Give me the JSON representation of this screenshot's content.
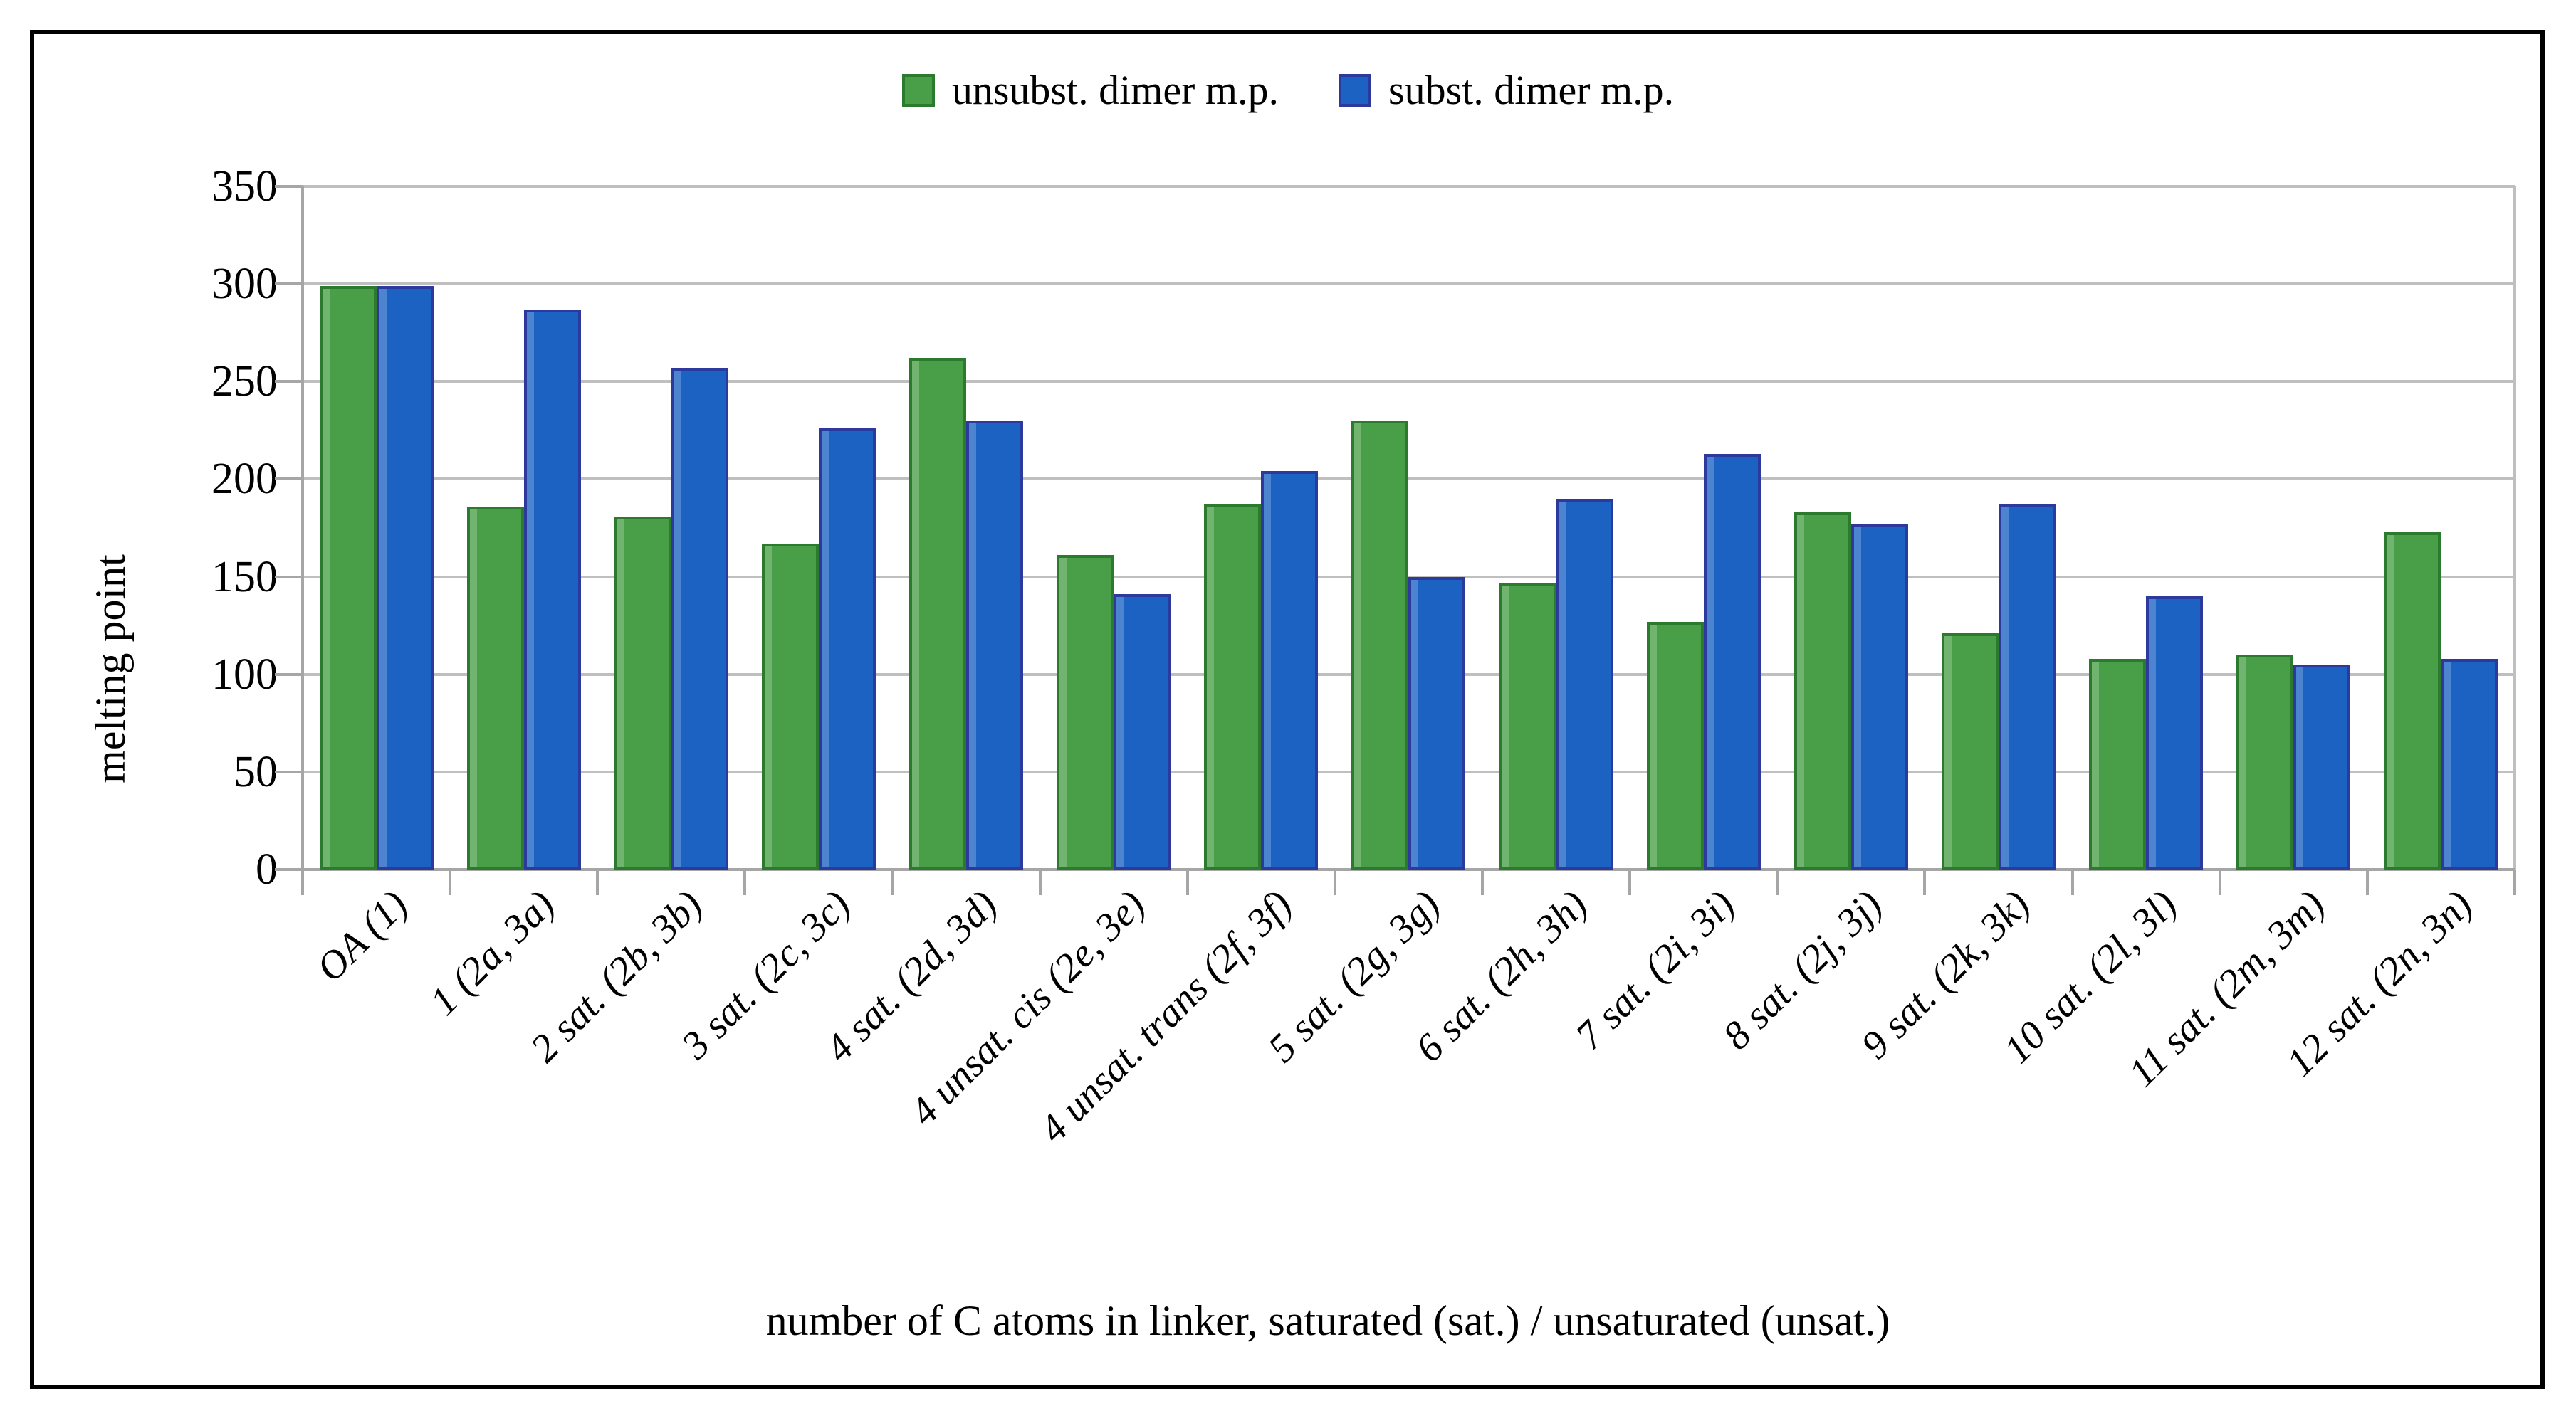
{
  "figure": {
    "background": "#ffffff",
    "frame_border_color": "#000000"
  },
  "chart_data": {
    "type": "bar",
    "title": "",
    "categories": [
      "OA (1)",
      "1 (2a, 3a)",
      "2 sat. (2b, 3b)",
      "3 sat. (2c, 3c)",
      "4 sat. (2d, 3d)",
      "4 unsat. cis (2e, 3e)",
      "4 unsat. trans (2f, 3f)",
      "5 sat. (2g, 3g)",
      "6 sat. (2h, 3h)",
      "7 sat. (2i, 3i)",
      "8 sat. (2j, 3j)",
      "9 sat. (2k, 3k)",
      "10 sat. (2l, 3l)",
      "11 sat. (2m, 3m)",
      "12 sat. (2n, 3n)"
    ],
    "series": [
      {
        "name": "unsubst. dimer m.p.",
        "color": "#489F47",
        "border_color": "#2B7A2E",
        "values": [
          299,
          186,
          181,
          167,
          262,
          161,
          187,
          230,
          147,
          127,
          183,
          121,
          108,
          110,
          173
        ]
      },
      {
        "name": "subst. dimer m.p.",
        "color": "#1B62C2",
        "border_color": "#2C3A9E",
        "values": [
          299,
          287,
          257,
          226,
          230,
          141,
          204,
          150,
          190,
          213,
          177,
          187,
          140,
          105,
          108
        ]
      }
    ],
    "xlabel": "number of C atoms in linker, saturated (sat.) / unsaturated (unsat.)",
    "ylabel": "melting point",
    "ylim": [
      0,
      350
    ],
    "yticks": [
      0,
      50,
      100,
      150,
      200,
      250,
      300,
      350
    ],
    "grid": true,
    "gridline_color": "#BFBFBF",
    "axis_color": "#A6A6A6",
    "legend_position": "top"
  }
}
